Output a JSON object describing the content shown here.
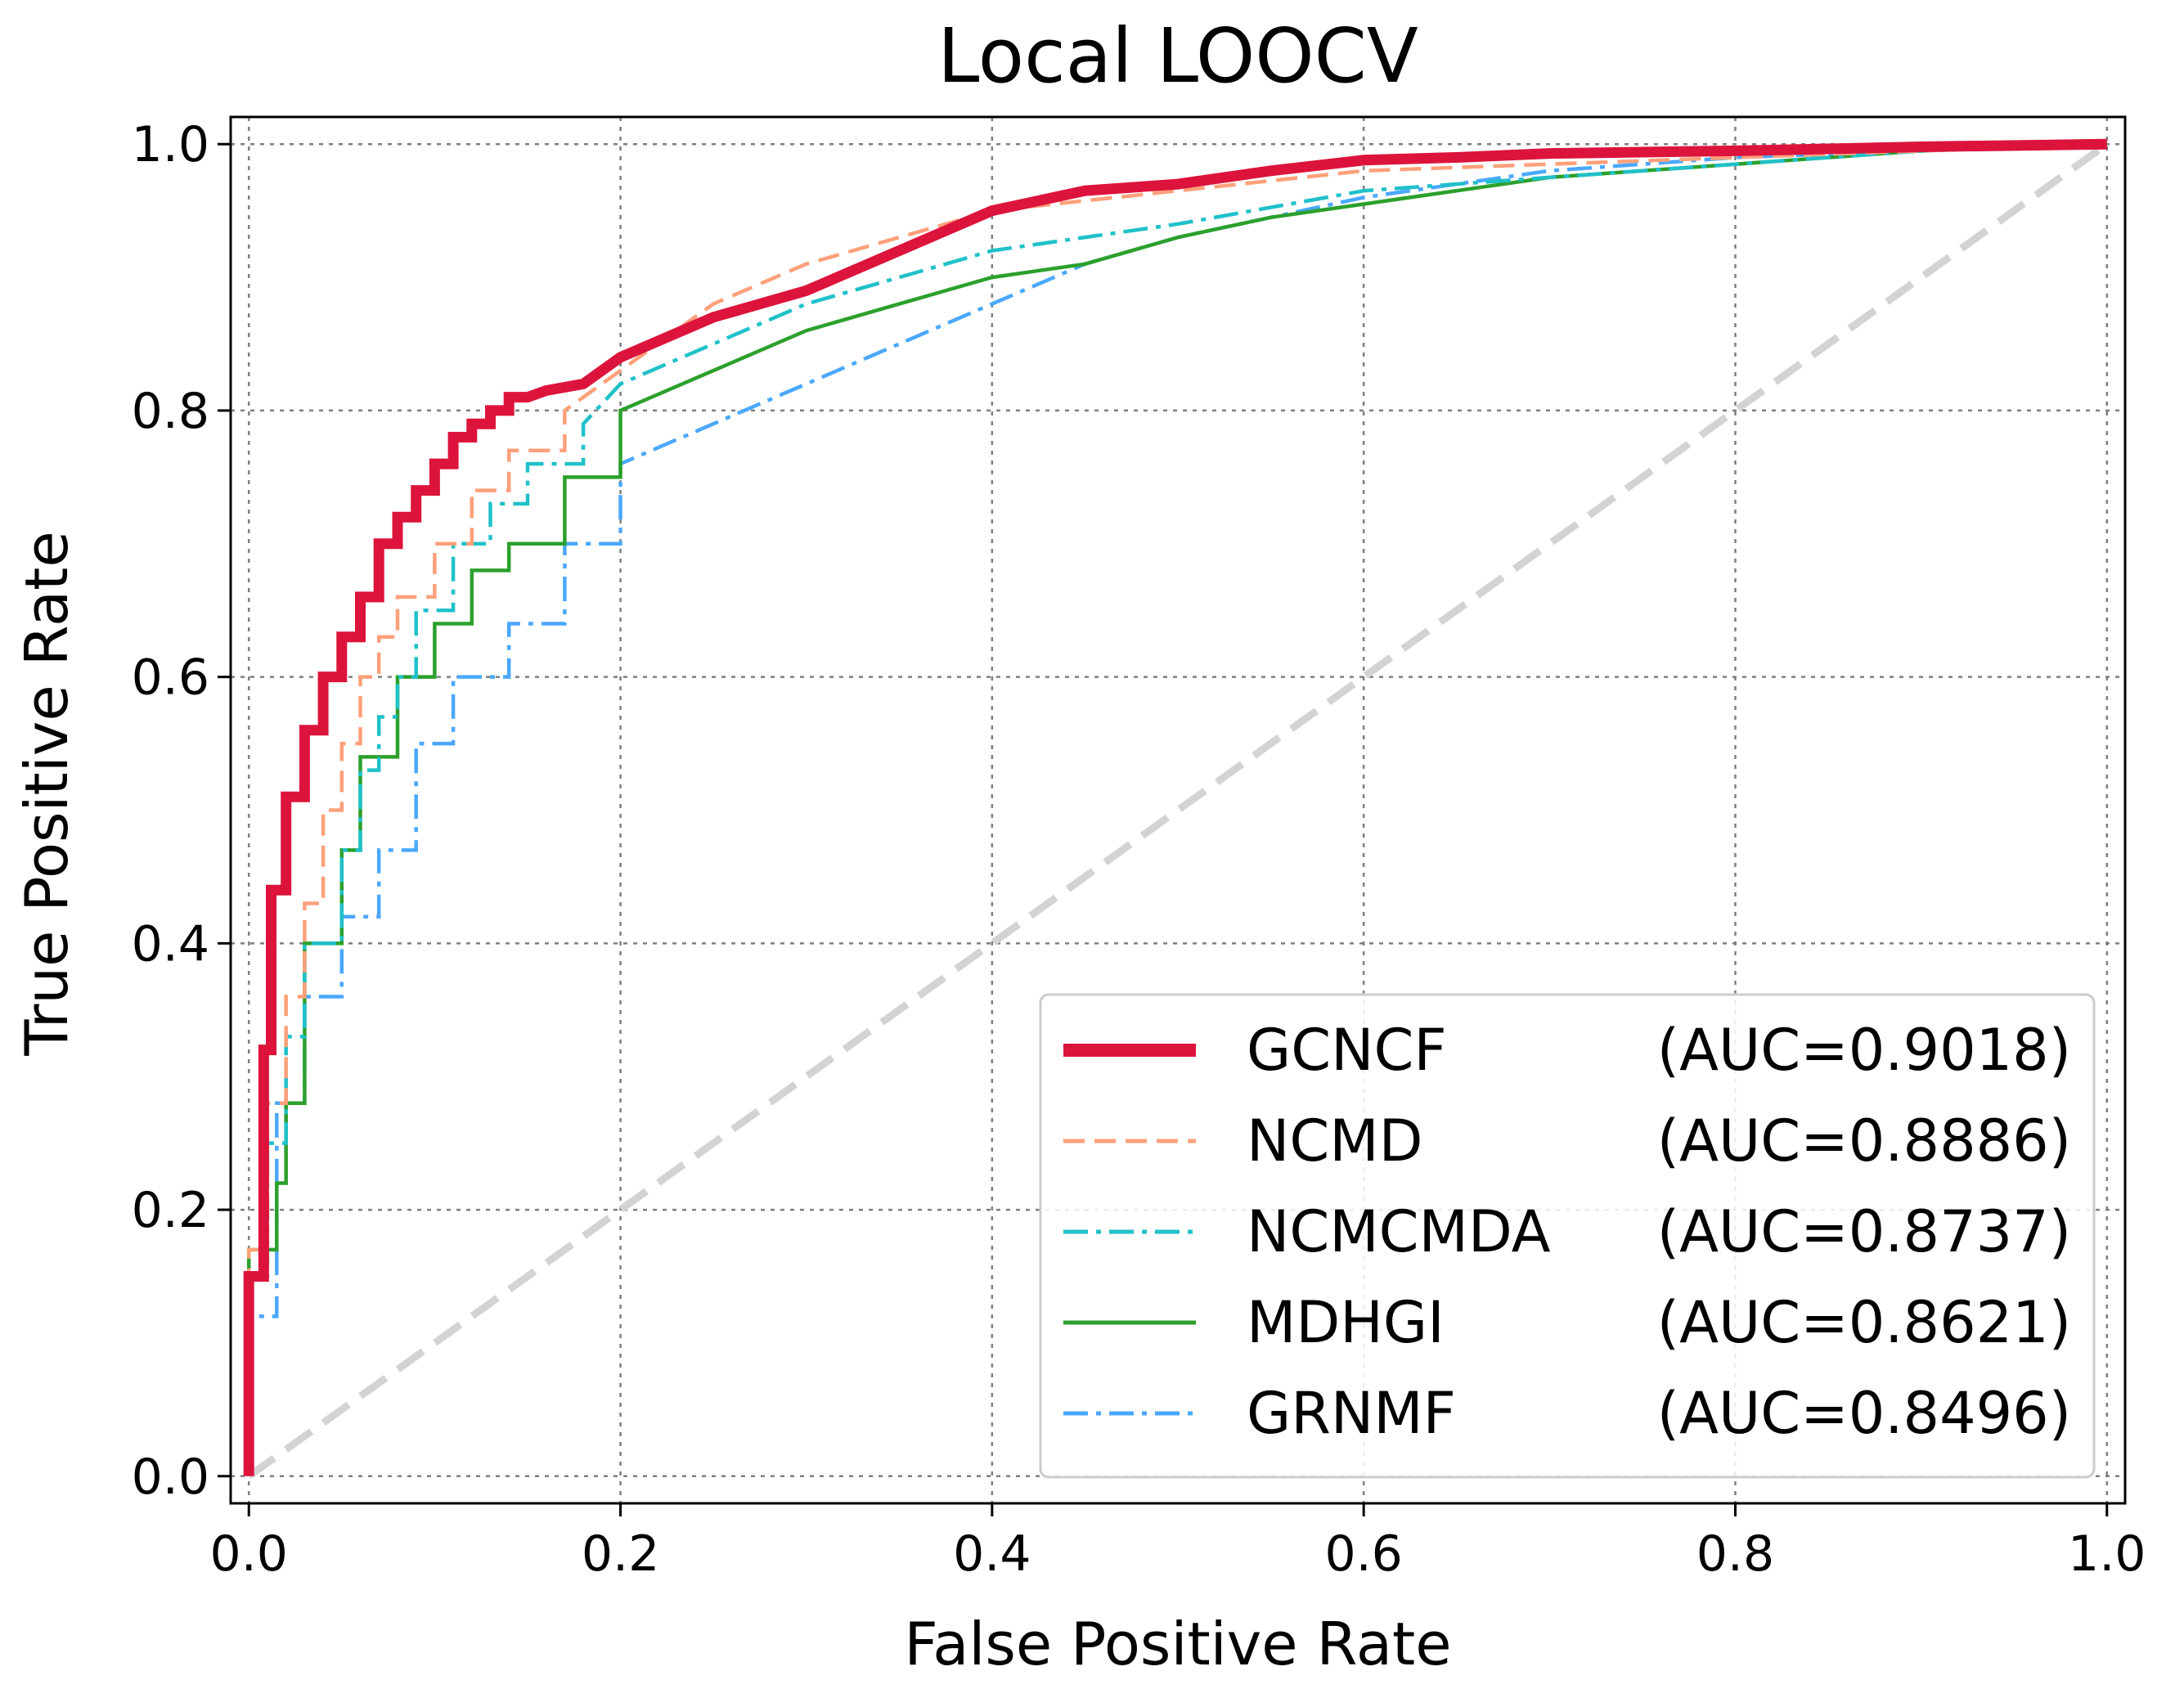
{
  "chart_data": {
    "type": "line",
    "title": "Local LOOCV",
    "xlabel": "False Positive Rate",
    "ylabel": "True Positive Rate",
    "xlim": [
      0.0,
      1.0
    ],
    "ylim": [
      0.0,
      1.0
    ],
    "xticks": [
      "0.0",
      "0.2",
      "0.4",
      "0.6",
      "0.8",
      "1.0"
    ],
    "yticks": [
      "0.0",
      "0.2",
      "0.4",
      "0.6",
      "0.8",
      "1.0"
    ],
    "grid": true,
    "legend_position": "lower-right",
    "reference_line": {
      "x": [
        0,
        1
      ],
      "y": [
        0,
        1
      ],
      "color": "#d3d3d3",
      "style": "dashed"
    },
    "series": [
      {
        "name": "GCNCF",
        "auc_label": "(AUC=0.9018)",
        "color": "#dc143c",
        "style": "solid",
        "thick": true,
        "x": [
          0,
          0,
          0.008,
          0.008,
          0.012,
          0.012,
          0.02,
          0.02,
          0.03,
          0.03,
          0.04,
          0.04,
          0.05,
          0.05,
          0.06,
          0.06,
          0.07,
          0.07,
          0.08,
          0.08,
          0.09,
          0.09,
          0.1,
          0.1,
          0.11,
          0.11,
          0.12,
          0.12,
          0.13,
          0.13,
          0.14,
          0.14,
          0.15,
          0.16,
          0.18,
          0.2,
          0.25,
          0.3,
          0.35,
          0.4,
          0.45,
          0.5,
          0.55,
          0.6,
          0.65,
          0.7,
          0.8,
          0.9,
          1.0
        ],
        "y": [
          0,
          0.15,
          0.15,
          0.32,
          0.32,
          0.44,
          0.44,
          0.51,
          0.51,
          0.56,
          0.56,
          0.6,
          0.6,
          0.63,
          0.63,
          0.66,
          0.66,
          0.7,
          0.7,
          0.72,
          0.72,
          0.74,
          0.74,
          0.76,
          0.76,
          0.78,
          0.78,
          0.79,
          0.79,
          0.8,
          0.8,
          0.81,
          0.81,
          0.815,
          0.82,
          0.84,
          0.87,
          0.89,
          0.92,
          0.95,
          0.965,
          0.97,
          0.98,
          0.988,
          0.99,
          0.993,
          0.995,
          0.998,
          1.0
        ]
      },
      {
        "name": "NCMD",
        "auc_label": "(AUC=0.8886)",
        "color": "#ffa07a",
        "style": "dashed",
        "thick": false,
        "x": [
          0,
          0,
          0.01,
          0.01,
          0.02,
          0.02,
          0.03,
          0.03,
          0.04,
          0.04,
          0.05,
          0.05,
          0.06,
          0.06,
          0.07,
          0.07,
          0.08,
          0.08,
          0.1,
          0.1,
          0.12,
          0.12,
          0.14,
          0.14,
          0.17,
          0.17,
          0.2,
          0.25,
          0.3,
          0.35,
          0.4,
          0.5,
          0.6,
          0.7,
          0.8,
          0.9,
          1.0
        ],
        "y": [
          0,
          0.17,
          0.17,
          0.28,
          0.28,
          0.36,
          0.36,
          0.43,
          0.43,
          0.5,
          0.5,
          0.55,
          0.55,
          0.6,
          0.6,
          0.63,
          0.63,
          0.66,
          0.66,
          0.7,
          0.7,
          0.74,
          0.74,
          0.77,
          0.77,
          0.8,
          0.83,
          0.88,
          0.91,
          0.93,
          0.95,
          0.965,
          0.98,
          0.985,
          0.99,
          0.995,
          1.0
        ]
      },
      {
        "name": "NCMCMDA",
        "auc_label": "(AUC=0.8737)",
        "color": "#20c1c9",
        "style": "dashdot",
        "thick": false,
        "x": [
          0,
          0,
          0.01,
          0.01,
          0.02,
          0.02,
          0.03,
          0.03,
          0.05,
          0.05,
          0.06,
          0.06,
          0.07,
          0.07,
          0.08,
          0.08,
          0.09,
          0.09,
          0.11,
          0.11,
          0.13,
          0.13,
          0.15,
          0.15,
          0.18,
          0.18,
          0.2,
          0.25,
          0.3,
          0.35,
          0.4,
          0.5,
          0.6,
          0.7,
          0.8,
          0.9,
          1.0
        ],
        "y": [
          0,
          0.15,
          0.15,
          0.25,
          0.25,
          0.33,
          0.33,
          0.4,
          0.4,
          0.47,
          0.47,
          0.53,
          0.53,
          0.57,
          0.57,
          0.6,
          0.6,
          0.65,
          0.65,
          0.7,
          0.7,
          0.73,
          0.73,
          0.76,
          0.76,
          0.79,
          0.82,
          0.85,
          0.88,
          0.9,
          0.92,
          0.94,
          0.965,
          0.975,
          0.985,
          0.995,
          1.0
        ]
      },
      {
        "name": "MDHGI",
        "auc_label": "(AUC=0.8621)",
        "color": "#2ca02c",
        "style": "solid",
        "thick": false,
        "x": [
          0,
          0,
          0.015,
          0.015,
          0.02,
          0.02,
          0.03,
          0.03,
          0.05,
          0.05,
          0.06,
          0.06,
          0.08,
          0.08,
          0.1,
          0.1,
          0.12,
          0.12,
          0.14,
          0.14,
          0.17,
          0.17,
          0.2,
          0.2,
          0.25,
          0.3,
          0.35,
          0.4,
          0.45,
          0.5,
          0.55,
          0.6,
          0.7,
          0.8,
          0.9,
          1.0
        ],
        "y": [
          0,
          0.17,
          0.17,
          0.22,
          0.22,
          0.28,
          0.28,
          0.4,
          0.4,
          0.47,
          0.47,
          0.54,
          0.54,
          0.6,
          0.6,
          0.64,
          0.64,
          0.68,
          0.68,
          0.7,
          0.7,
          0.75,
          0.75,
          0.8,
          0.83,
          0.86,
          0.88,
          0.9,
          0.91,
          0.93,
          0.945,
          0.955,
          0.975,
          0.985,
          0.995,
          1.0
        ]
      },
      {
        "name": "GRNMF",
        "auc_label": "(AUC=0.8496)",
        "color": "#4aa8ff",
        "style": "dashdot",
        "thick": false,
        "x": [
          0,
          0,
          0.015,
          0.015,
          0.03,
          0.03,
          0.05,
          0.05,
          0.07,
          0.07,
          0.09,
          0.09,
          0.11,
          0.11,
          0.14,
          0.14,
          0.17,
          0.17,
          0.2,
          0.2,
          0.25,
          0.3,
          0.35,
          0.4,
          0.45,
          0.5,
          0.6,
          0.7,
          0.8,
          0.9,
          1.0
        ],
        "y": [
          0,
          0.12,
          0.12,
          0.28,
          0.28,
          0.36,
          0.36,
          0.42,
          0.42,
          0.47,
          0.47,
          0.55,
          0.55,
          0.6,
          0.6,
          0.64,
          0.64,
          0.7,
          0.7,
          0.76,
          0.79,
          0.82,
          0.85,
          0.88,
          0.91,
          0.93,
          0.96,
          0.98,
          0.99,
          0.995,
          1.0
        ]
      }
    ]
  }
}
